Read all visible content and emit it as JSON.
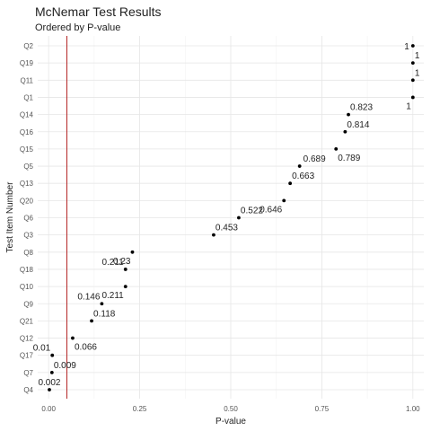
{
  "chart_data": {
    "type": "scatter",
    "title": "McNemar Test Results",
    "subtitle": "Ordered by P-value",
    "xlabel": "P-value",
    "ylabel": "Test Item Number",
    "xlim": [
      -0.03,
      1.03
    ],
    "x_ticks": [
      0,
      0.25,
      0.5,
      0.75,
      1
    ],
    "x_tick_labels": [
      "0.00",
      "0.25",
      "0.50",
      "0.75",
      "1.00"
    ],
    "reference_line": {
      "x": 0.05,
      "color": "#b22222"
    },
    "grid": true,
    "items": [
      {
        "name": "Q4",
        "value": 0.002,
        "label": "0.002",
        "pos": "above"
      },
      {
        "name": "Q7",
        "value": 0.009,
        "label": "0.009",
        "pos": "above-right"
      },
      {
        "name": "Q17",
        "value": 0.01,
        "label": "0.01",
        "pos": "above-left"
      },
      {
        "name": "Q12",
        "value": 0.066,
        "label": "0.066",
        "pos": "below-right"
      },
      {
        "name": "Q21",
        "value": 0.118,
        "label": "0.118",
        "pos": "above-right"
      },
      {
        "name": "Q9",
        "value": 0.146,
        "label": "0.146",
        "pos": "above-left"
      },
      {
        "name": "Q10",
        "value": 0.211,
        "label": "0.211",
        "pos": "below-left"
      },
      {
        "name": "Q18",
        "value": 0.211,
        "label": "0.211",
        "pos": "above-left"
      },
      {
        "name": "Q8",
        "value": 0.23,
        "label": "0.23",
        "pos": "below-left"
      },
      {
        "name": "Q3",
        "value": 0.453,
        "label": "0.453",
        "pos": "above-right"
      },
      {
        "name": "Q6",
        "value": 0.522,
        "label": "0.522",
        "pos": "above-right"
      },
      {
        "name": "Q20",
        "value": 0.646,
        "label": "0.646",
        "pos": "below-left"
      },
      {
        "name": "Q13",
        "value": 0.663,
        "label": "0.663",
        "pos": "above-right"
      },
      {
        "name": "Q5",
        "value": 0.689,
        "label": "0.689",
        "pos": "right"
      },
      {
        "name": "Q15",
        "value": 0.789,
        "label": "0.789",
        "pos": "below-right"
      },
      {
        "name": "Q16",
        "value": 0.814,
        "label": "0.814",
        "pos": "above-right"
      },
      {
        "name": "Q14",
        "value": 0.823,
        "label": "0.823",
        "pos": "above-right"
      },
      {
        "name": "Q1",
        "value": 1,
        "label": "1",
        "pos": "below-left"
      },
      {
        "name": "Q11",
        "value": 1,
        "label": "1",
        "pos": "above-right"
      },
      {
        "name": "Q19",
        "value": 1,
        "label": "1",
        "pos": "above-right"
      },
      {
        "name": "Q2",
        "value": 1,
        "label": "1",
        "pos": "left"
      }
    ]
  }
}
